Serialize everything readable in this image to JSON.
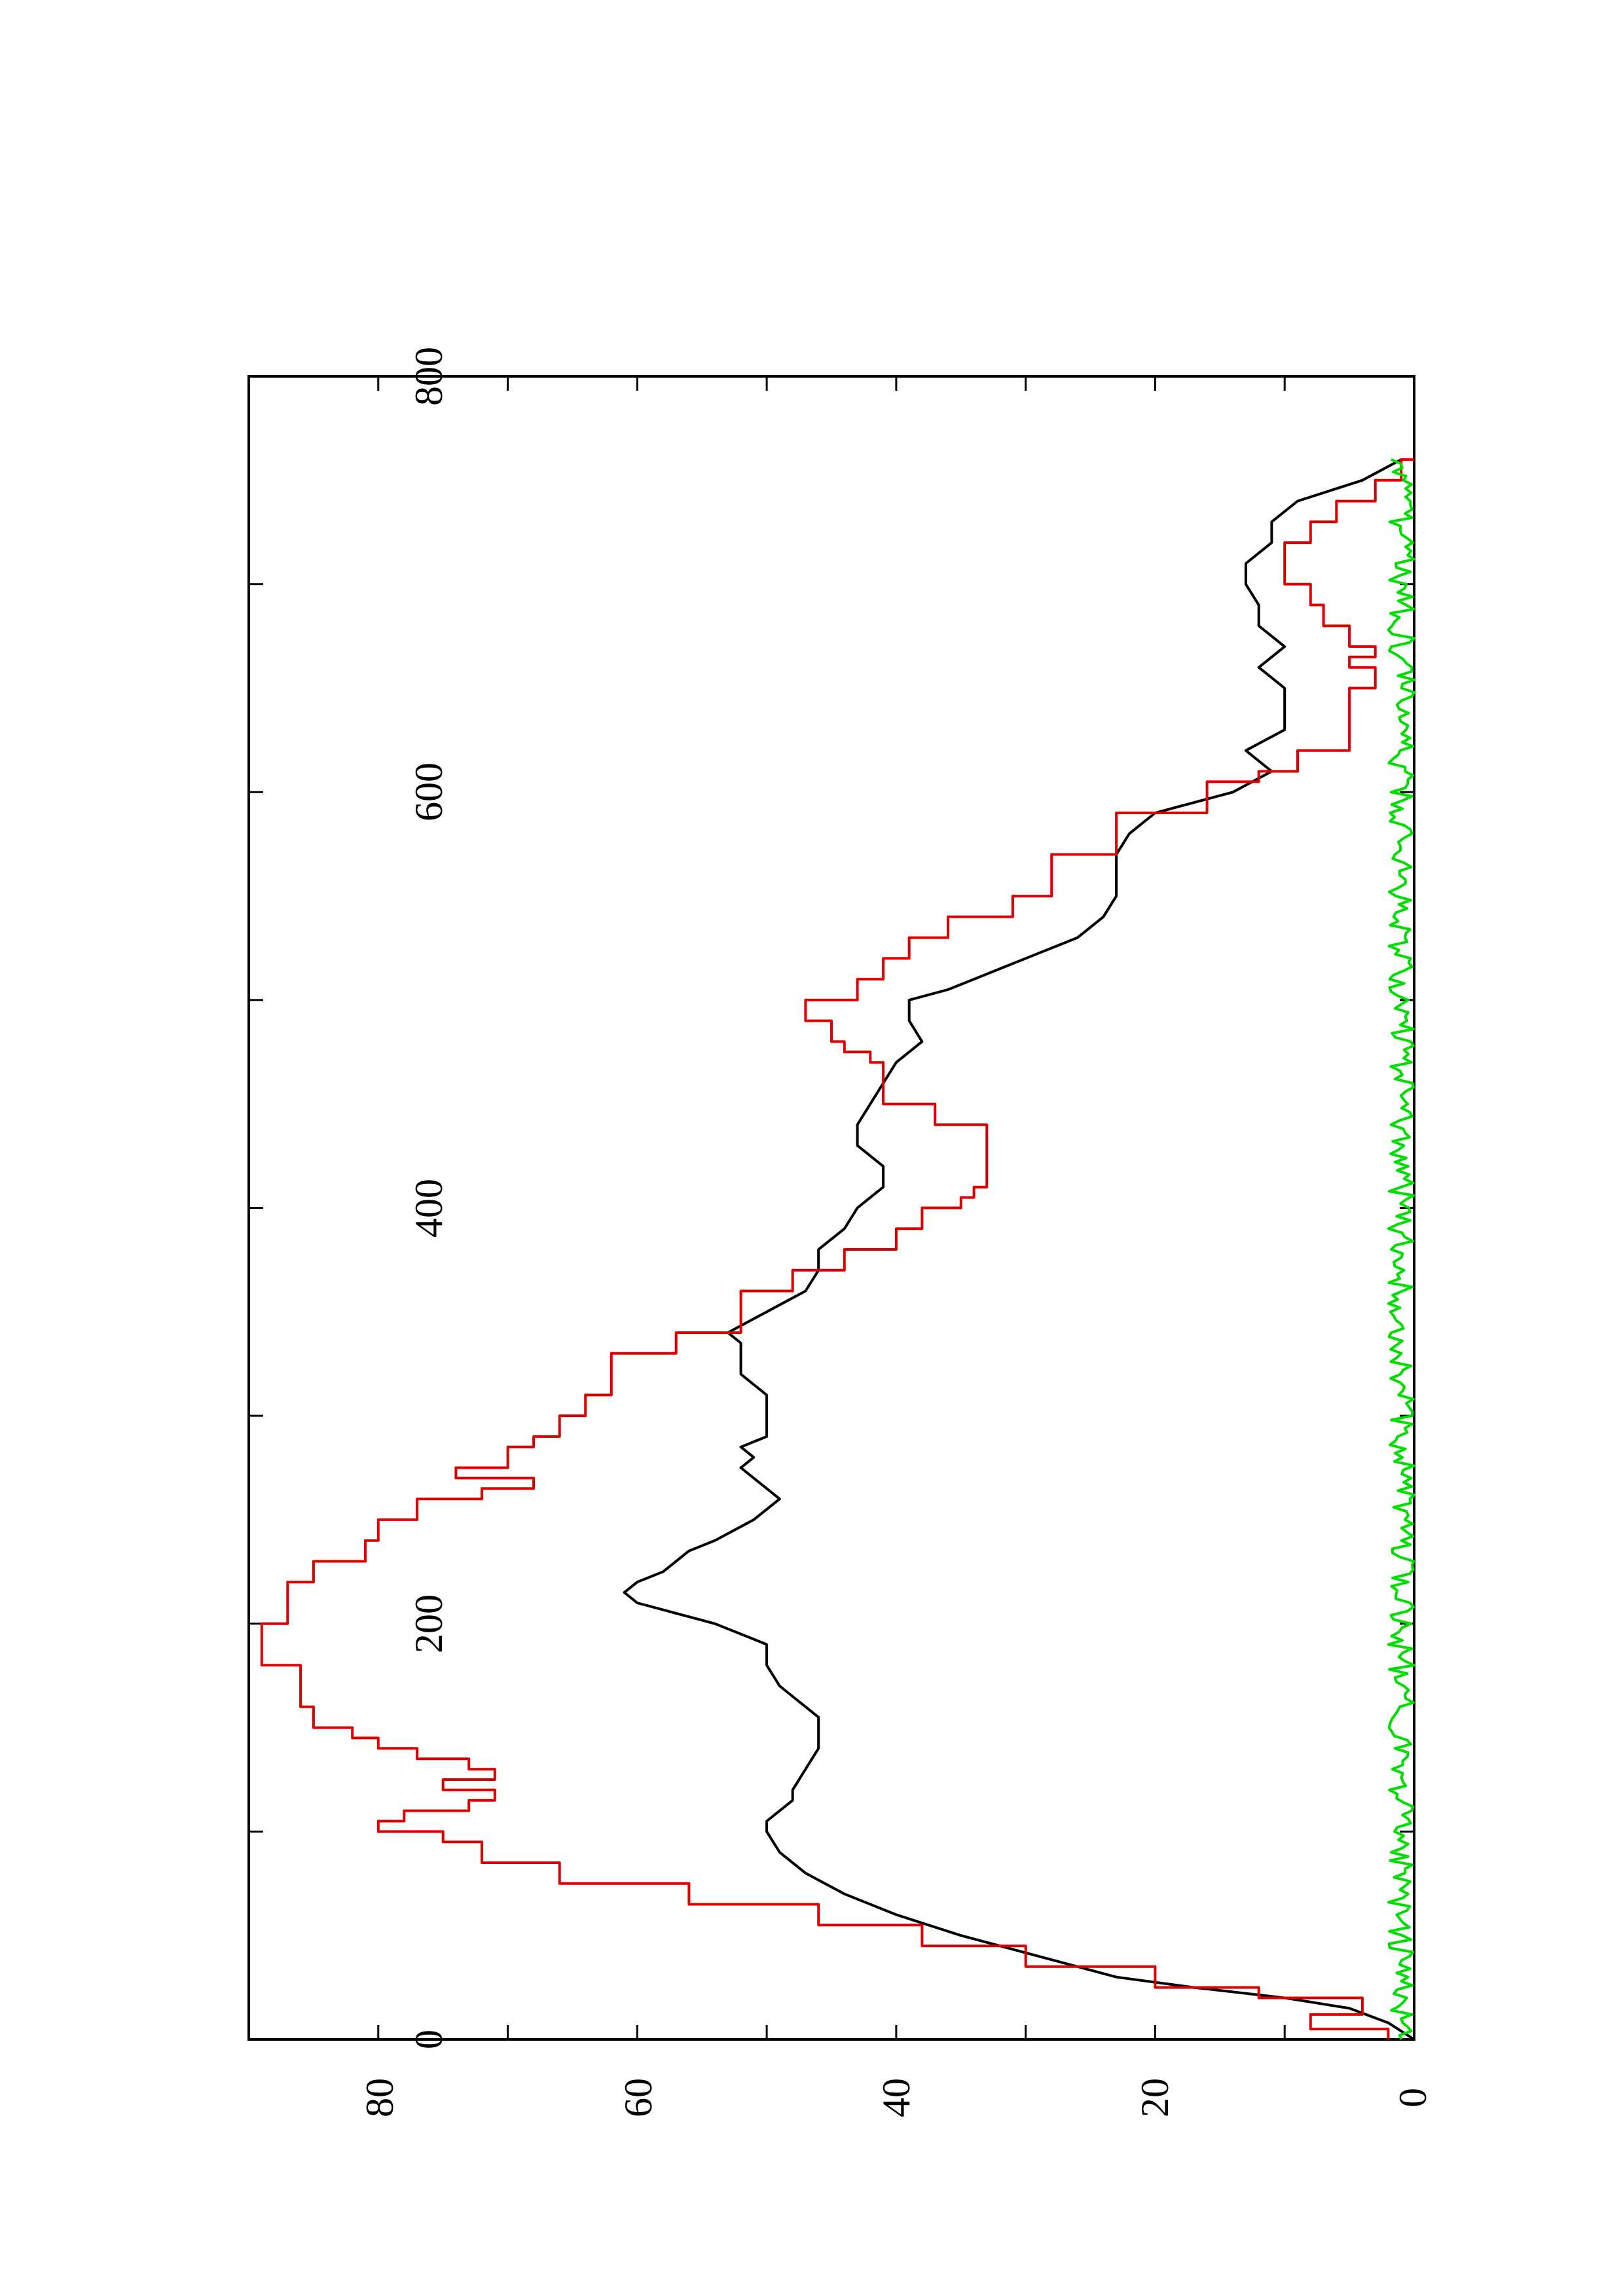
{
  "chart_data": {
    "type": "line",
    "orientation": "rotated-90-ccw",
    "title": "",
    "xlabel": "",
    "ylabel": "",
    "xlim": [
      0,
      800
    ],
    "ylim": [
      0,
      90
    ],
    "x_ticks": [
      0,
      200,
      400,
      600,
      800
    ],
    "y_ticks": [
      0,
      20,
      40,
      60,
      80
    ],
    "x_tick_labels": [
      "0",
      "200",
      "400",
      "600",
      "800"
    ],
    "y_tick_labels": [
      "0",
      "20",
      "40",
      "60",
      "80"
    ],
    "grid": false,
    "legend": "none",
    "series": [
      {
        "color": "#000000",
        "style": "smooth",
        "x": [
          0,
          8,
          15,
          20,
          25,
          30,
          40,
          50,
          60,
          70,
          80,
          90,
          100,
          105,
          110,
          115,
          120,
          130,
          140,
          145,
          150,
          155,
          160,
          170,
          180,
          190,
          195,
          200,
          205,
          210,
          215,
          220,
          225,
          235,
          240,
          250,
          260,
          265,
          270,
          275,
          280,
          285,
          290,
          300,
          310,
          320,
          330,
          335,
          340,
          350,
          360,
          370,
          380,
          390,
          400,
          405,
          410,
          420,
          430,
          440,
          450,
          460,
          470,
          475,
          480,
          490,
          500,
          505,
          510,
          520,
          530,
          540,
          550,
          560,
          570,
          580,
          590,
          600,
          610,
          620,
          630,
          640,
          650,
          660,
          670,
          680,
          690,
          700,
          710,
          720,
          730,
          740,
          750,
          760
        ],
        "values": [
          0,
          2,
          5,
          10,
          17,
          23,
          29,
          35,
          40,
          44,
          47,
          49,
          50,
          50,
          49,
          48,
          48,
          47,
          46,
          46,
          46,
          46,
          47,
          49,
          50,
          50,
          52,
          54,
          57,
          60,
          61,
          60,
          58,
          56,
          54,
          51,
          49,
          50,
          51,
          52,
          51,
          52,
          50,
          50,
          50,
          52,
          52,
          52,
          53,
          50,
          47,
          46,
          46,
          44,
          43,
          42,
          41,
          41,
          43,
          43,
          42,
          41,
          40,
          39,
          38,
          39,
          39,
          36,
          34,
          30,
          26,
          24,
          23,
          23,
          23,
          22,
          20,
          14,
          11,
          13,
          10,
          10,
          10,
          12,
          10,
          12,
          12,
          13,
          13,
          11,
          11,
          9,
          4,
          1
        ]
      },
      {
        "color": "#dd0000",
        "style": "step",
        "x": [
          0,
          5,
          12,
          20,
          25,
          35,
          45,
          55,
          65,
          75,
          85,
          95,
          100,
          105,
          110,
          115,
          120,
          125,
          130,
          135,
          140,
          145,
          150,
          160,
          170,
          180,
          190,
          200,
          210,
          220,
          230,
          240,
          250,
          260,
          265,
          270,
          275,
          280,
          285,
          290,
          300,
          310,
          320,
          330,
          340,
          350,
          360,
          370,
          380,
          390,
          400,
          405,
          410,
          420,
          430,
          440,
          450,
          460,
          470,
          475,
          480,
          490,
          500,
          510,
          520,
          530,
          540,
          550,
          560,
          570,
          580,
          590,
          600,
          605,
          610,
          620,
          630,
          640,
          650,
          660,
          665,
          670,
          680,
          690,
          700,
          710,
          720,
          730,
          740,
          750,
          760
        ],
        "values": [
          2,
          8,
          4,
          12,
          20,
          30,
          38,
          46,
          56,
          66,
          72,
          75,
          80,
          78,
          73,
          71,
          75,
          71,
          73,
          77,
          80,
          82,
          85,
          86,
          86,
          89,
          89,
          87,
          87,
          85,
          81,
          80,
          77,
          72,
          68,
          74,
          70,
          70,
          68,
          66,
          64,
          62,
          62,
          57,
          52,
          52,
          48,
          44,
          40,
          38,
          35,
          34,
          33,
          33,
          33,
          37,
          41,
          41,
          42,
          44,
          45,
          47,
          43,
          41,
          39,
          36,
          31,
          28,
          28,
          23,
          23,
          16,
          16,
          12,
          9,
          5,
          5,
          5,
          3,
          5,
          3,
          5,
          7,
          8,
          10,
          10,
          8,
          6,
          3,
          1,
          0
        ]
      },
      {
        "color": "#00dd00",
        "style": "noise",
        "level_min": 0,
        "level_max": 2
      }
    ]
  }
}
